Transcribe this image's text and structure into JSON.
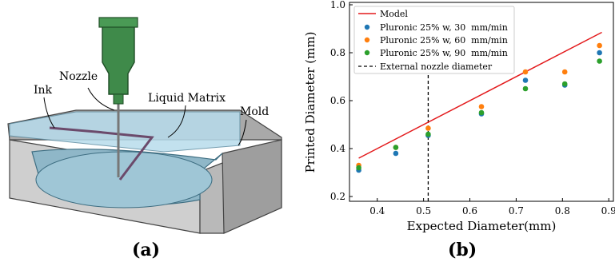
{
  "figure": {
    "panel_a_label": "(a)",
    "panel_b_label": "(b)"
  },
  "illustration": {
    "nozzle_label": "Nozzle",
    "ink_label": "Ink",
    "liquid_matrix_label": "Liquid Matrix",
    "mold_label": "Mold"
  },
  "chart_data": {
    "type": "scatter",
    "xlabel": "Expected Diameter(mm)",
    "ylabel": "Printed Diameter (mm)",
    "xlim": [
      0.34,
      0.91
    ],
    "ylim": [
      0.18,
      1.01
    ],
    "xticks": [
      0.4,
      0.5,
      0.6,
      0.7,
      0.8,
      0.9
    ],
    "xtick_labels": [
      "0.4",
      "0.5",
      "0.6",
      "0.7",
      "0.8",
      "0.9"
    ],
    "yticks": [
      0.2,
      0.4,
      0.6,
      0.8,
      1.0
    ],
    "ytick_labels": [
      "0.2",
      "0.4",
      "0.6",
      "0.8",
      "1.0"
    ],
    "grid": false,
    "legend_position": "top-left",
    "model": {
      "name": "Model",
      "color": "#e31a1c",
      "x": [
        0.36,
        0.885
      ],
      "y": [
        0.36,
        0.885
      ]
    },
    "vline": {
      "name": "External nozzle diameter",
      "x": 0.51
    },
    "series": [
      {
        "name": "Pluronic 25% w, 30  mm/min",
        "color": "#1f77b4",
        "x": [
          0.36,
          0.44,
          0.51,
          0.625,
          0.72,
          0.805,
          0.88
        ],
        "y": [
          0.31,
          0.38,
          0.455,
          0.545,
          0.685,
          0.665,
          0.8
        ]
      },
      {
        "name": "Pluronic 25% w, 60  mm/min",
        "color": "#ff7f0e",
        "x": [
          0.36,
          0.44,
          0.51,
          0.625,
          0.72,
          0.805,
          0.88
        ],
        "y": [
          0.33,
          0.405,
          0.485,
          0.575,
          0.72,
          0.72,
          0.83
        ]
      },
      {
        "name": "Pluronic 25% w, 90  mm/min",
        "color": "#2ca02c",
        "x": [
          0.36,
          0.44,
          0.51,
          0.625,
          0.72,
          0.805,
          0.88
        ],
        "y": [
          0.32,
          0.405,
          0.46,
          0.55,
          0.65,
          0.67,
          0.765
        ]
      }
    ]
  }
}
